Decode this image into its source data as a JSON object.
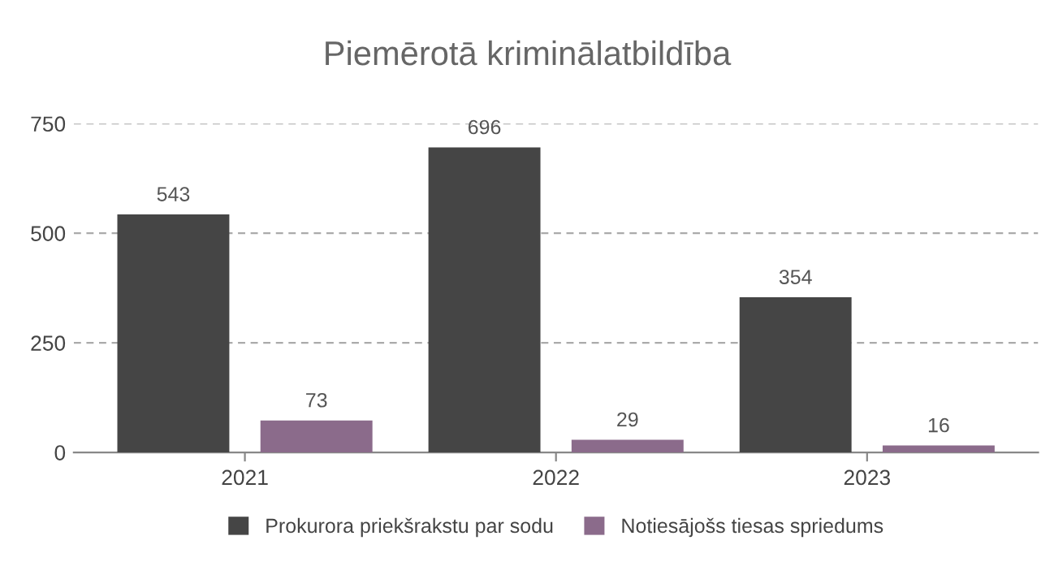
{
  "chart_data": {
    "type": "bar",
    "title": "Piemērotā kriminālatbildība",
    "categories": [
      "2021",
      "2022",
      "2023"
    ],
    "series": [
      {
        "name": "Prokurora priekšrakstu par sodu",
        "color": "#454545",
        "values": [
          543,
          696,
          354
        ]
      },
      {
        "name": "Notiesājošs tiesas spriedums",
        "color": "#8b6b8b",
        "values": [
          73,
          29,
          16
        ]
      }
    ],
    "ylim": [
      0,
      750
    ],
    "yticks": [
      0,
      250,
      500,
      750
    ],
    "grid": "y",
    "legend": "bottom",
    "data_labels": true
  }
}
